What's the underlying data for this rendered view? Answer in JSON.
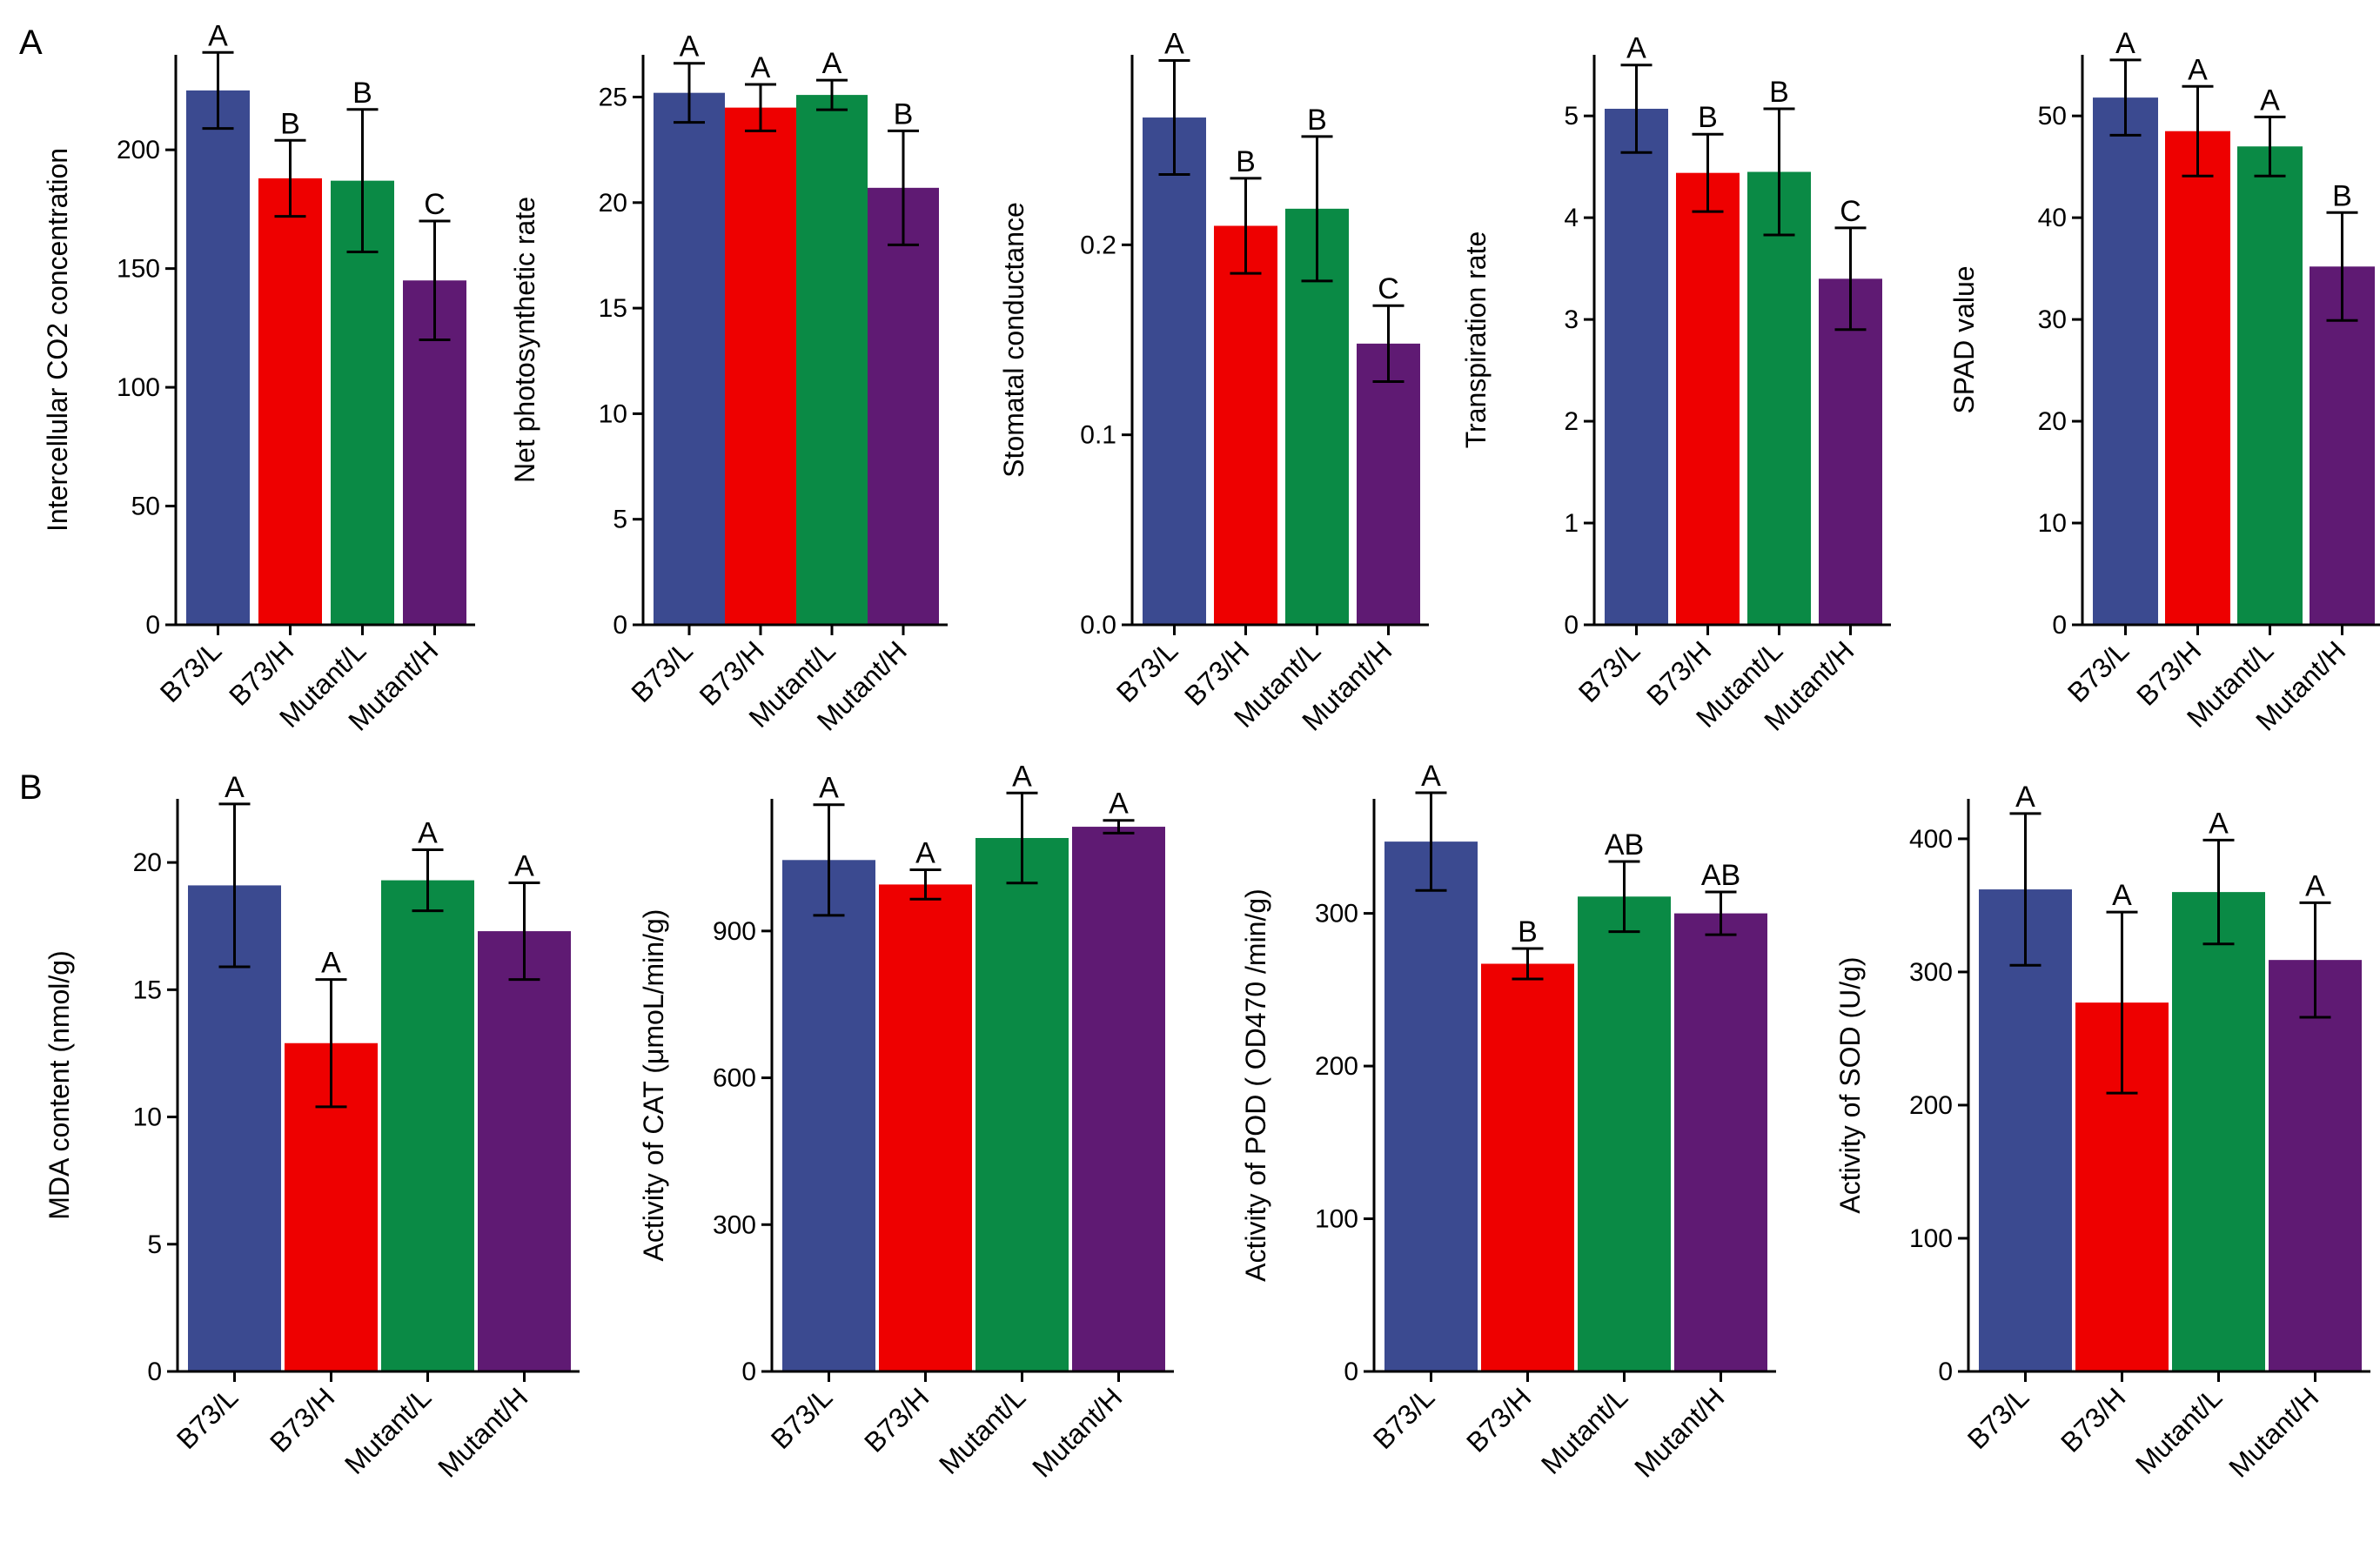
{
  "panels": [
    {
      "label": "A"
    },
    {
      "label": "B"
    }
  ],
  "colors": {
    "B73/L": "#3b4a90",
    "B73/H": "#ee0000",
    "Mutant/L": "#0a8a45",
    "Mutant/H": "#5f1a73"
  },
  "chart_data": [
    {
      "id": "ci",
      "panel": "A",
      "type": "bar",
      "categories": [
        "B73/L",
        "B73/H",
        "Mutant/L",
        "Mutant/H"
      ],
      "values": [
        225,
        188,
        187,
        145
      ],
      "errors": [
        16,
        16,
        30,
        25
      ],
      "significance": [
        "A",
        "B",
        "B",
        "C"
      ],
      "ylabel": "Intercellular CO2 concentration",
      "ylim": [
        0,
        240
      ],
      "yticks": [
        0,
        50,
        100,
        150,
        200
      ],
      "ytick_labels": [
        "0",
        "50",
        "100",
        "150",
        "200"
      ]
    },
    {
      "id": "pn",
      "panel": "A",
      "type": "bar",
      "categories": [
        "B73/L",
        "B73/H",
        "Mutant/L",
        "Mutant/H"
      ],
      "values": [
        25.2,
        24.5,
        25.1,
        20.7
      ],
      "errors": [
        1.4,
        1.1,
        0.7,
        2.7
      ],
      "significance": [
        "A",
        "A",
        "A",
        "B"
      ],
      "ylabel": "Net photosynthetic rate",
      "ylim": [
        0,
        27
      ],
      "yticks": [
        0,
        5,
        10,
        15,
        20,
        25
      ],
      "ytick_labels": [
        "0",
        "5",
        "10",
        "15",
        "20",
        "25"
      ]
    },
    {
      "id": "gs",
      "panel": "A",
      "type": "bar",
      "categories": [
        "B73/L",
        "B73/H",
        "Mutant/L",
        "Mutant/H"
      ],
      "values": [
        0.267,
        0.21,
        0.219,
        0.148
      ],
      "errors": [
        0.03,
        0.025,
        0.038,
        0.02
      ],
      "significance": [
        "A",
        "B",
        "B",
        "C"
      ],
      "ylabel": "Stomatal conductance",
      "ylim": [
        0,
        0.3
      ],
      "yticks": [
        0,
        0.1,
        0.2
      ],
      "ytick_labels": [
        "0.0",
        "0.1",
        "0.2"
      ]
    },
    {
      "id": "tr",
      "panel": "A",
      "type": "bar",
      "categories": [
        "B73/L",
        "B73/H",
        "Mutant/L",
        "Mutant/H"
      ],
      "values": [
        5.07,
        4.44,
        4.45,
        3.4
      ],
      "errors": [
        0.43,
        0.38,
        0.62,
        0.5
      ],
      "significance": [
        "A",
        "B",
        "B",
        "C"
      ],
      "ylabel": "Transpiration rate",
      "ylim": [
        0,
        5.6
      ],
      "yticks": [
        0,
        1,
        2,
        3,
        4,
        5
      ],
      "ytick_labels": [
        "0",
        "1",
        "2",
        "3",
        "4",
        "5"
      ]
    },
    {
      "id": "spad",
      "panel": "A",
      "type": "bar",
      "categories": [
        "B73/L",
        "B73/H",
        "Mutant/L",
        "Mutant/H"
      ],
      "values": [
        51.8,
        48.5,
        47.0,
        35.2
      ],
      "errors": [
        3.7,
        4.4,
        2.9,
        5.3
      ],
      "significance": [
        "A",
        "A",
        "A",
        "B"
      ],
      "ylabel": "SPAD value",
      "ylim": [
        0,
        56
      ],
      "yticks": [
        0,
        10,
        20,
        30,
        40,
        50
      ],
      "ytick_labels": [
        "0",
        "10",
        "20",
        "30",
        "40",
        "50"
      ]
    },
    {
      "id": "mda",
      "panel": "B",
      "type": "bar",
      "categories": [
        "B73/L",
        "B73/H",
        "Mutant/L",
        "Mutant/H"
      ],
      "values": [
        19.1,
        12.9,
        19.3,
        17.3
      ],
      "errors": [
        3.2,
        2.5,
        1.2,
        1.9
      ],
      "significance": [
        "A",
        "A",
        "A",
        "A"
      ],
      "ylabel": "MDA content (nmol/g)",
      "ylim": [
        0,
        22.5
      ],
      "yticks": [
        0,
        5,
        10,
        15,
        20
      ],
      "ytick_labels": [
        "0",
        "5",
        "10",
        "15",
        "20"
      ]
    },
    {
      "id": "cat",
      "panel": "B",
      "type": "bar",
      "categories": [
        "B73/L",
        "B73/H",
        "Mutant/L",
        "Mutant/H"
      ],
      "values": [
        1045,
        995,
        1090,
        1113
      ],
      "errors": [
        113,
        30,
        92,
        13
      ],
      "significance": [
        "A",
        "A",
        "A",
        "A"
      ],
      "ylabel": "Activity of CAT (μmoL/min/g)",
      "ylim": [
        0,
        1170
      ],
      "yticks": [
        0,
        300,
        600,
        900
      ],
      "ytick_labels": [
        "0",
        "300",
        "600",
        "900"
      ]
    },
    {
      "id": "pod",
      "panel": "B",
      "type": "bar",
      "categories": [
        "B73/L",
        "B73/H",
        "Mutant/L",
        "Mutant/H"
      ],
      "values": [
        347,
        267,
        311,
        300
      ],
      "errors": [
        32,
        10,
        23,
        14
      ],
      "significance": [
        "A",
        "B",
        "AB",
        "AB"
      ],
      "ylabel": "Activity of POD ( OD470 /min/g)",
      "ylim": [
        0,
        375
      ],
      "yticks": [
        0,
        100,
        200,
        300
      ],
      "ytick_labels": [
        "0",
        "100",
        "200",
        "300"
      ]
    },
    {
      "id": "sod",
      "panel": "B",
      "type": "bar",
      "categories": [
        "B73/L",
        "B73/H",
        "Mutant/L",
        "Mutant/H"
      ],
      "values": [
        362,
        277,
        360,
        309
      ],
      "errors": [
        57,
        68,
        39,
        43
      ],
      "significance": [
        "A",
        "A",
        "A",
        "A"
      ],
      "ylabel": "Activity of SOD (U/g)",
      "ylim": [
        0,
        430
      ],
      "yticks": [
        0,
        100,
        200,
        300,
        400
      ],
      "ytick_labels": [
        "0",
        "100",
        "200",
        "300",
        "400"
      ]
    }
  ]
}
